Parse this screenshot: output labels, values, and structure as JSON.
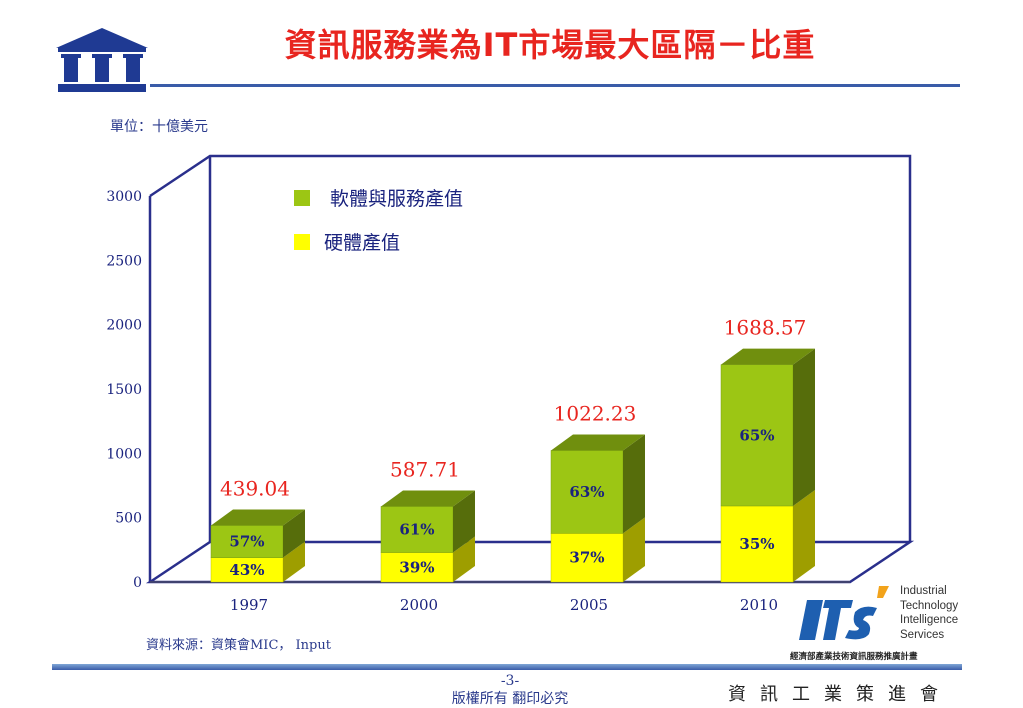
{
  "header": {
    "title": "資訊服務業為IT市場最大區隔－比重"
  },
  "unit_label": "單位：十億美元",
  "source_label": "資料來源：資策會MIC， Input",
  "footer": {
    "page": "-3-",
    "copyright": "版權所有 翻印必究",
    "org": "資訊工業策進會"
  },
  "itis": {
    "lines": [
      "Industrial",
      "Technology",
      "Intelligence",
      "Services"
    ],
    "program": "經濟部產業技術資訊服務推廣計畫"
  },
  "colors": {
    "software": "#9cc614",
    "hardware": "#ffff00",
    "title": "#e8251f",
    "frame": "#2a2f8c"
  },
  "chart_data": {
    "type": "bar",
    "stacked": true,
    "three_d": true,
    "categories": [
      "1997",
      "2000",
      "2005",
      "2010"
    ],
    "series": [
      {
        "name": "硬體產值",
        "color": "#ffff00",
        "percent_labels": [
          "43%",
          "39%",
          "37%",
          "35%"
        ]
      },
      {
        "name": "軟體與服務產值",
        "color": "#9cc614",
        "percent_labels": [
          "57%",
          "61%",
          "63%",
          "65%"
        ]
      }
    ],
    "hardware_values": [
      189,
      229,
      378,
      591
    ],
    "software_values": [
      250,
      358,
      644,
      1098
    ],
    "totals": [
      439.04,
      587.71,
      1022.23,
      1688.57
    ],
    "total_labels": [
      "439.04",
      "587.71",
      "1022.23",
      "1688.57"
    ],
    "yticks": [
      "0",
      "500",
      "1000",
      "1500",
      "2000",
      "2500",
      "3000"
    ],
    "ylim": [
      0,
      3000
    ],
    "legend": {
      "position": "top-left",
      "items": [
        "軟體與服務產值",
        "硬體產值"
      ]
    }
  }
}
